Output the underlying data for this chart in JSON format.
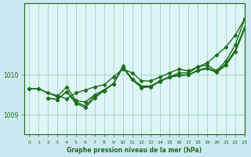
{
  "title": "Graphe pression niveau de la mer (hPa)",
  "bg_color": "#cce8f0",
  "plot_bg_color": "#ddf5f5",
  "line_color": "#1a6b1a",
  "grid_color": "#99ccbb",
  "xlim": [
    -0.5,
    23
  ],
  "ylim": [
    1008.5,
    1011.8
  ],
  "yticks": [
    1009,
    1010
  ],
  "xticks": [
    0,
    1,
    2,
    3,
    4,
    5,
    6,
    7,
    8,
    9,
    10,
    11,
    12,
    13,
    14,
    15,
    16,
    17,
    18,
    19,
    20,
    21,
    22,
    23
  ],
  "series": [
    {
      "x": [
        0,
        1,
        2,
        3,
        4,
        5,
        6,
        7,
        8,
        9,
        10,
        11,
        12,
        13,
        14,
        15,
        16,
        17,
        18,
        19,
        20,
        21,
        22,
        23
      ],
      "y": [
        1009.65,
        1009.65,
        1009.55,
        1009.48,
        1009.4,
        1009.55,
        1009.62,
        1009.7,
        1009.75,
        1009.95,
        1010.15,
        1010.05,
        1009.85,
        1009.85,
        1009.95,
        1010.05,
        1010.15,
        1010.1,
        1010.2,
        1010.3,
        1010.5,
        1010.7,
        1011.0,
        1011.4
      ],
      "marker": "D",
      "linewidth": 1.0
    },
    {
      "x": [
        0,
        1,
        3,
        4,
        5,
        6,
        7,
        8,
        9,
        10,
        11,
        12,
        13,
        14,
        15,
        16,
        17,
        18,
        19,
        20,
        21,
        22,
        23
      ],
      "y": [
        1009.65,
        1009.65,
        1009.45,
        1009.7,
        1009.35,
        1009.32,
        1009.5,
        1009.62,
        1009.78,
        1010.18,
        1009.88,
        1009.7,
        1009.72,
        1009.85,
        1009.95,
        1010.05,
        1010.05,
        1010.2,
        1010.25,
        1010.1,
        1010.35,
        1010.75,
        1011.4
      ],
      "marker": "D",
      "linewidth": 1.0
    },
    {
      "x": [
        2,
        3,
        4,
        5,
        6,
        7,
        8,
        9,
        10,
        11,
        12,
        13,
        14,
        15,
        16,
        17,
        18,
        19,
        20,
        21,
        22,
        23
      ],
      "y": [
        1009.42,
        1009.38,
        1009.58,
        1009.32,
        1009.22,
        1009.48,
        1009.62,
        1009.78,
        1010.2,
        1009.9,
        1009.72,
        1009.72,
        1009.85,
        1009.95,
        1010.0,
        1010.0,
        1010.12,
        1010.18,
        1010.08,
        1010.28,
        1010.62,
        1011.2
      ],
      "marker": "^",
      "linewidth": 1.0
    },
    {
      "x": [
        2,
        3,
        4,
        5,
        6,
        7,
        8,
        9,
        10,
        11,
        12,
        13,
        14,
        15,
        16,
        17,
        18,
        19,
        20,
        21,
        22,
        23
      ],
      "y": [
        1009.42,
        1009.38,
        1009.58,
        1009.28,
        1009.18,
        1009.42,
        1009.6,
        1009.78,
        1010.22,
        1009.88,
        1009.68,
        1009.7,
        1009.84,
        1009.94,
        1009.98,
        1010.0,
        1010.1,
        1010.16,
        1010.06,
        1010.24,
        1010.58,
        1011.15
      ],
      "marker": "D",
      "linewidth": 1.0
    }
  ]
}
